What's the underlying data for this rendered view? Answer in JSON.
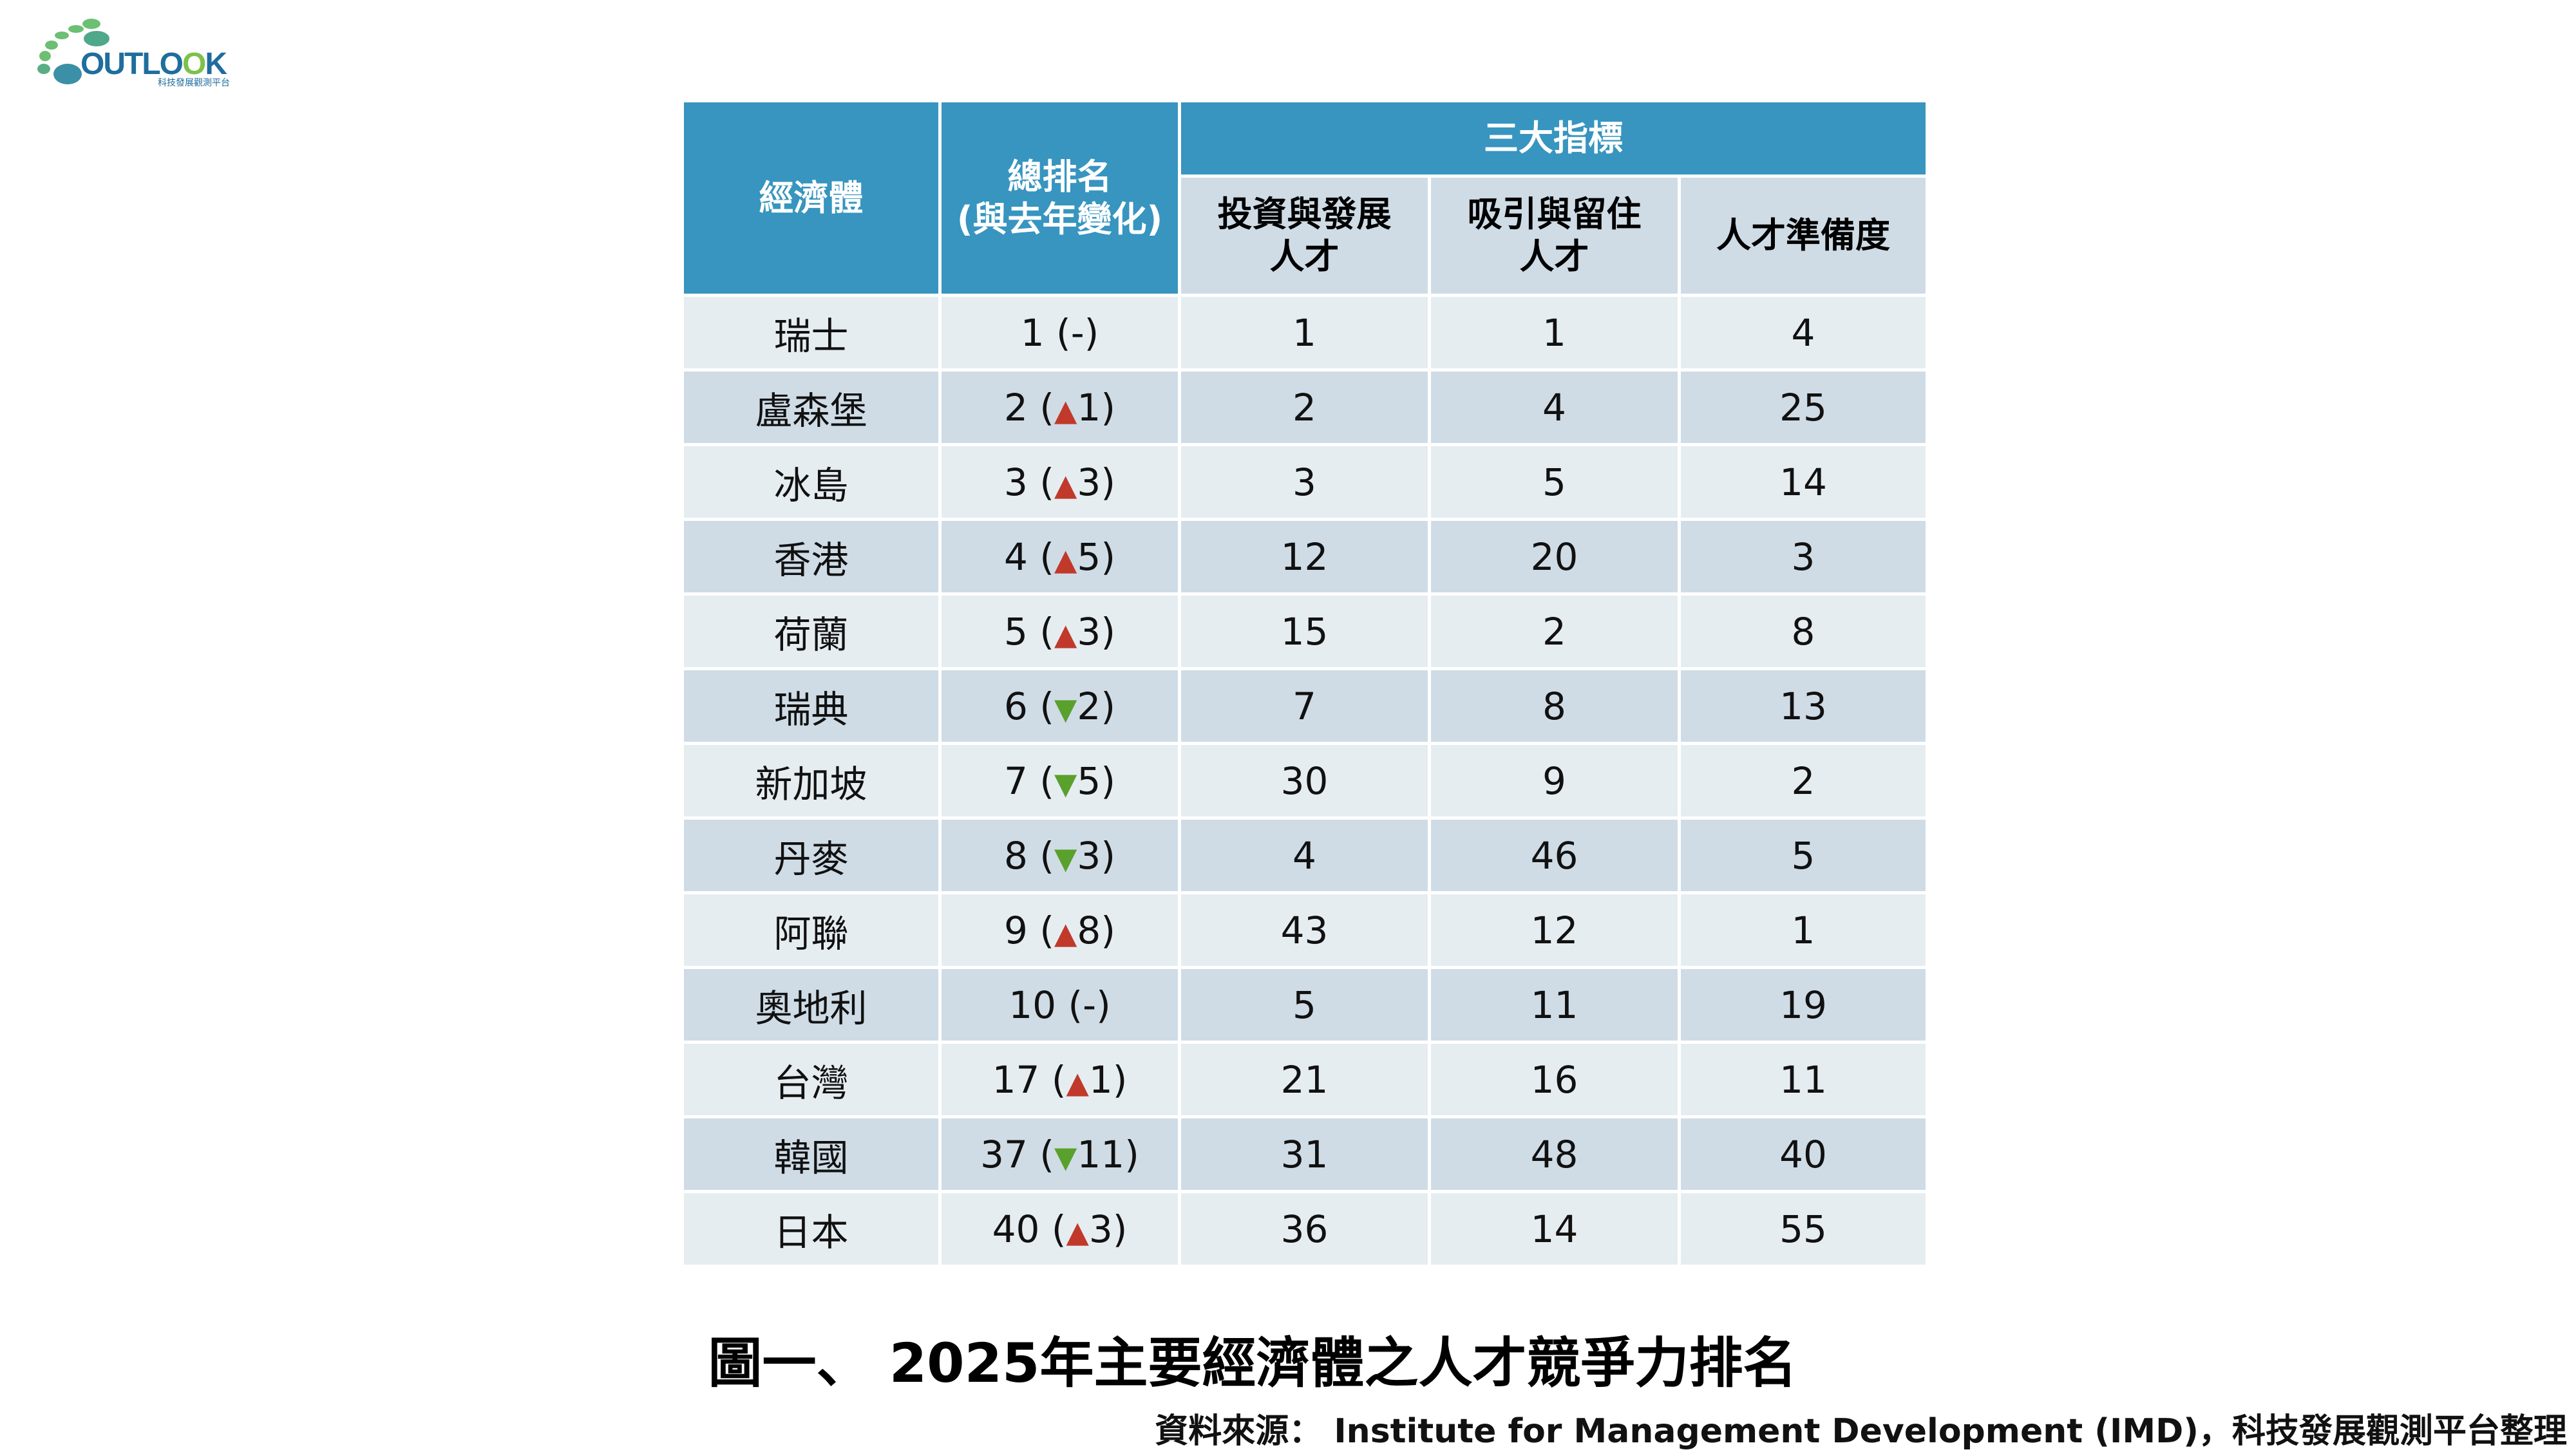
{
  "logo": {
    "text": "OUTLOOK",
    "subtitle": "科技發展觀測平台"
  },
  "colors": {
    "header": "#3795bf",
    "row_light": "#e6edf1",
    "row_dark": "#cfdce6",
    "up": "#c0392b",
    "down": "#5aa02c"
  },
  "table": {
    "headers": {
      "economy": "經濟體",
      "rank_line1": "總排名",
      "rank_line2": "(與去年變化)",
      "group": "三大指標",
      "ind1_line1": "投資與發展",
      "ind1_line2": "人才",
      "ind2_line1": "吸引與留住",
      "ind2_line2": "人才",
      "ind3": "人才準備度"
    },
    "rows": [
      {
        "economy": "瑞士",
        "rank": "1",
        "change_dir": "none",
        "change": "-",
        "ind1": "1",
        "ind2": "1",
        "ind3": "4"
      },
      {
        "economy": "盧森堡",
        "rank": "2",
        "change_dir": "up",
        "change": "1",
        "ind1": "2",
        "ind2": "4",
        "ind3": "25"
      },
      {
        "economy": "冰島",
        "rank": "3",
        "change_dir": "up",
        "change": "3",
        "ind1": "3",
        "ind2": "5",
        "ind3": "14"
      },
      {
        "economy": "香港",
        "rank": "4",
        "change_dir": "up",
        "change": "5",
        "ind1": "12",
        "ind2": "20",
        "ind3": "3"
      },
      {
        "economy": "荷蘭",
        "rank": "5",
        "change_dir": "up",
        "change": "3",
        "ind1": "15",
        "ind2": "2",
        "ind3": "8"
      },
      {
        "economy": "瑞典",
        "rank": "6",
        "change_dir": "down",
        "change": "2",
        "ind1": "7",
        "ind2": "8",
        "ind3": "13"
      },
      {
        "economy": "新加坡",
        "rank": "7",
        "change_dir": "down",
        "change": "5",
        "ind1": "30",
        "ind2": "9",
        "ind3": "2"
      },
      {
        "economy": "丹麥",
        "rank": "8",
        "change_dir": "down",
        "change": "3",
        "ind1": "4",
        "ind2": "46",
        "ind3": "5"
      },
      {
        "economy": "阿聯",
        "rank": "9",
        "change_dir": "up",
        "change": "8",
        "ind1": "43",
        "ind2": "12",
        "ind3": "1"
      },
      {
        "economy": "奧地利",
        "rank": "10",
        "change_dir": "none",
        "change": "-",
        "ind1": "5",
        "ind2": "11",
        "ind3": "19"
      },
      {
        "economy": "台灣",
        "rank": "17",
        "change_dir": "up",
        "change": "1",
        "ind1": "21",
        "ind2": "16",
        "ind3": "11"
      },
      {
        "economy": "韓國",
        "rank": "37",
        "change_dir": "down",
        "change": "11",
        "ind1": "31",
        "ind2": "48",
        "ind3": "40"
      },
      {
        "economy": "日本",
        "rank": "40",
        "change_dir": "up",
        "change": "3",
        "ind1": "36",
        "ind2": "14",
        "ind3": "55"
      }
    ]
  },
  "caption": "圖一、 2025年主要經濟體之人才競爭力排名",
  "source": "資料來源： Institute for Management Development (IMD)，科技發展觀測平台整理"
}
